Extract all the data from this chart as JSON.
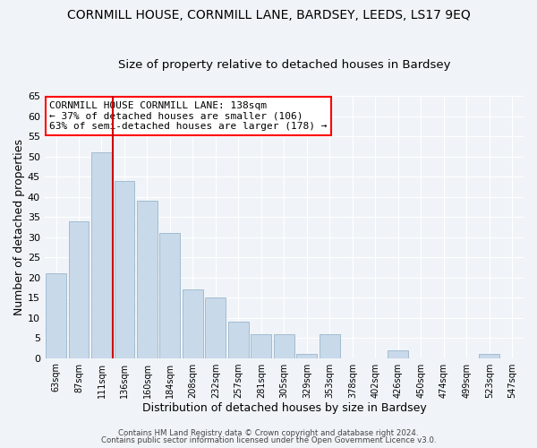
{
  "title": "CORNMILL HOUSE, CORNMILL LANE, BARDSEY, LEEDS, LS17 9EQ",
  "subtitle": "Size of property relative to detached houses in Bardsey",
  "xlabel": "Distribution of detached houses by size in Bardsey",
  "ylabel": "Number of detached properties",
  "bar_labels": [
    "63sqm",
    "87sqm",
    "111sqm",
    "136sqm",
    "160sqm",
    "184sqm",
    "208sqm",
    "232sqm",
    "257sqm",
    "281sqm",
    "305sqm",
    "329sqm",
    "353sqm",
    "378sqm",
    "402sqm",
    "426sqm",
    "450sqm",
    "474sqm",
    "499sqm",
    "523sqm",
    "547sqm"
  ],
  "bar_values": [
    21,
    34,
    51,
    44,
    39,
    31,
    17,
    15,
    9,
    6,
    6,
    1,
    6,
    0,
    0,
    2,
    0,
    0,
    0,
    1,
    0
  ],
  "bar_color": "#c8d9ea",
  "bar_edge_color": "#9ab5cc",
  "ylim": [
    0,
    65
  ],
  "yticks": [
    0,
    5,
    10,
    15,
    20,
    25,
    30,
    35,
    40,
    45,
    50,
    55,
    60,
    65
  ],
  "vline_color": "#cc0000",
  "annotation_box_text": "CORNMILL HOUSE CORNMILL LANE: 138sqm\n← 37% of detached houses are smaller (106)\n63% of semi-detached houses are larger (178) →",
  "footer_line1": "Contains HM Land Registry data © Crown copyright and database right 2024.",
  "footer_line2": "Contains public sector information licensed under the Open Government Licence v3.0.",
  "background_color": "#f0f4f8",
  "grid_color": "#ffffff",
  "title_fontsize": 10,
  "subtitle_fontsize": 9.5
}
